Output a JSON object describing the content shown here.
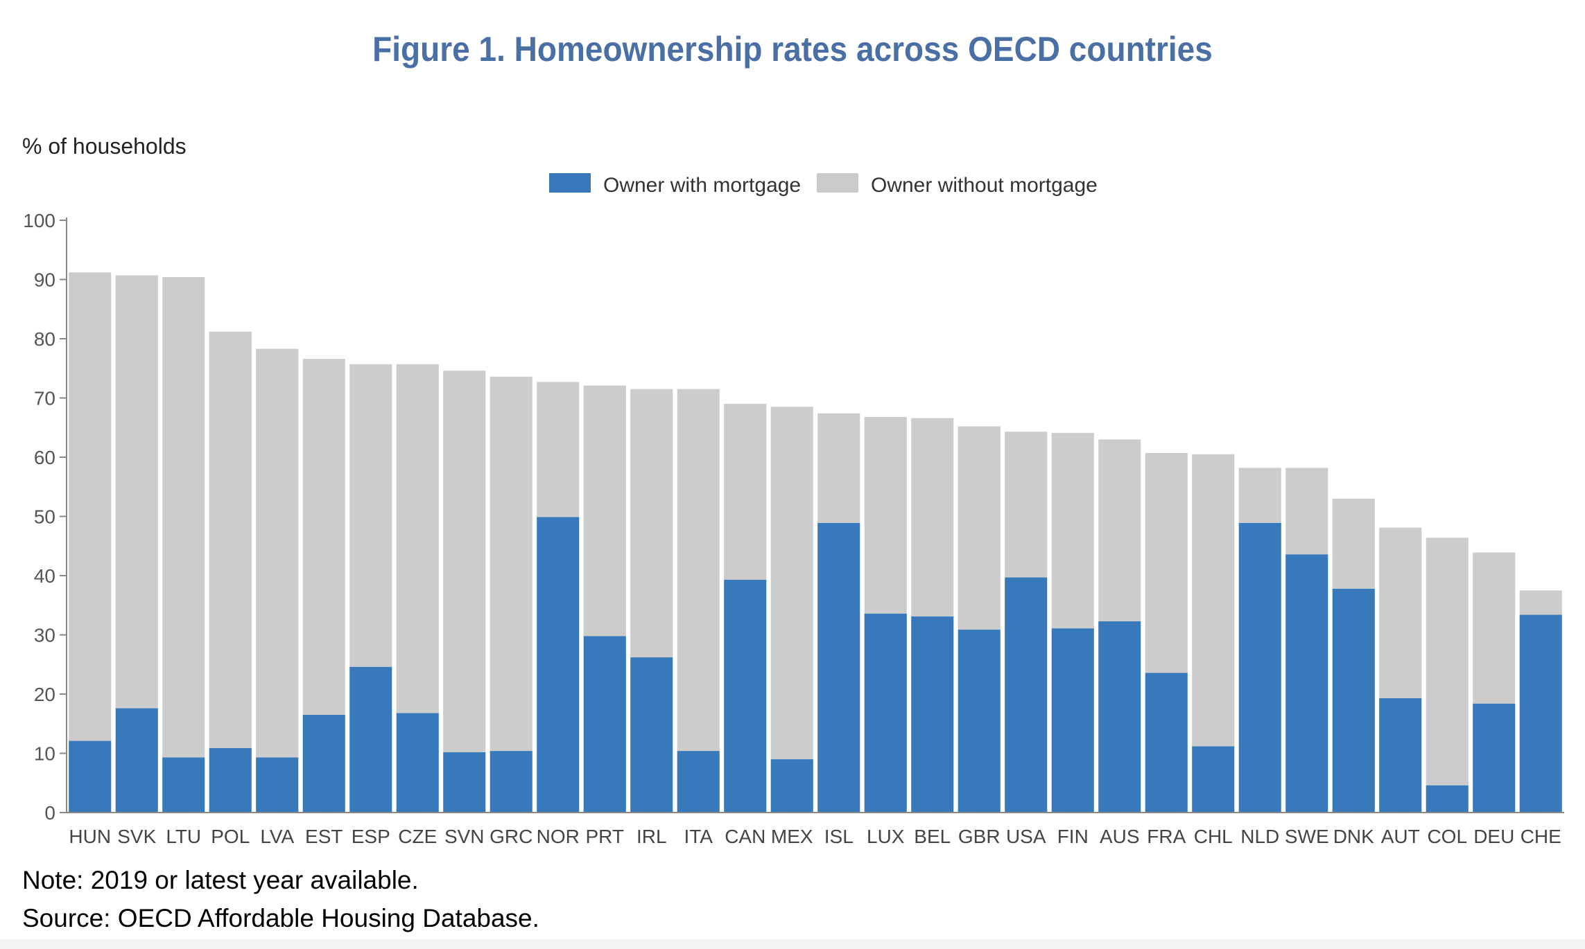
{
  "chart_data": {
    "type": "bar",
    "stacked": true,
    "title": "Figure 1. Homeownership rates across OECD countries",
    "ylabel": "% of households",
    "xlabel": "",
    "ylim": [
      0,
      100
    ],
    "yticks": [
      0,
      10,
      20,
      30,
      40,
      50,
      60,
      70,
      80,
      90,
      100
    ],
    "legend_position": "top-center",
    "categories": [
      "HUN",
      "SVK",
      "LTU",
      "POL",
      "LVA",
      "EST",
      "ESP",
      "CZE",
      "SVN",
      "GRC",
      "NOR",
      "PRT",
      "IRL",
      "ITA",
      "CAN",
      "MEX",
      "ISL",
      "LUX",
      "BEL",
      "GBR",
      "USA",
      "FIN",
      "AUS",
      "FRA",
      "CHL",
      "NLD",
      "SWE",
      "DNK",
      "AUT",
      "COL",
      "DEU",
      "CHE"
    ],
    "series": [
      {
        "name": "Owner with mortgage",
        "color": "#3779bb",
        "values": [
          12.1,
          17.6,
          9.3,
          10.9,
          9.3,
          16.5,
          24.6,
          16.8,
          10.2,
          10.4,
          49.9,
          29.8,
          26.2,
          10.4,
          39.3,
          9.0,
          48.9,
          33.6,
          33.1,
          30.9,
          39.7,
          31.1,
          32.3,
          23.6,
          11.2,
          48.9,
          43.6,
          37.8,
          19.3,
          4.6,
          18.4,
          33.4
        ]
      },
      {
        "name": "Owner without mortgage",
        "color": "#cccccc",
        "values": [
          79.1,
          73.1,
          81.1,
          70.3,
          69.0,
          60.1,
          51.1,
          58.9,
          64.4,
          63.2,
          22.8,
          42.3,
          45.3,
          61.1,
          29.7,
          59.5,
          18.5,
          33.2,
          33.5,
          34.3,
          24.6,
          33.0,
          30.7,
          37.1,
          49.3,
          9.3,
          14.6,
          15.2,
          28.8,
          41.8,
          25.5,
          4.1
        ]
      }
    ]
  },
  "notes": {
    "note": "Note: 2019 or latest year available.",
    "source": "Source: OECD Affordable Housing Database."
  }
}
